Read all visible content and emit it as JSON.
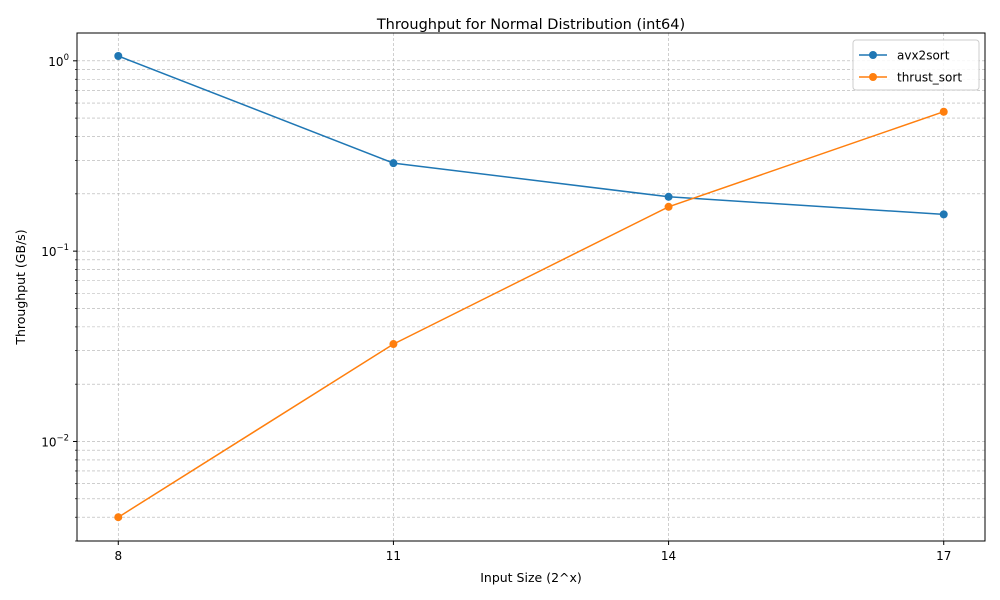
{
  "chart_data": {
    "type": "line",
    "title": "Throughput for Normal Distribution (int64)",
    "xlabel": "Input Size (2^x)",
    "ylabel": "Throughput (GB/s)",
    "x": [
      8,
      11,
      14,
      17
    ],
    "x_ticks": [
      "8",
      "11",
      "14",
      "17"
    ],
    "xlim": [
      7.55,
      17.45
    ],
    "yscale": "log",
    "ylim": [
      0.003,
      1.4
    ],
    "y_major_ticks": [
      {
        "value": 0.01,
        "base": "10",
        "exp": "−2"
      },
      {
        "value": 0.1,
        "base": "10",
        "exp": "−1"
      },
      {
        "value": 1,
        "base": "10",
        "exp": "0"
      }
    ],
    "grid": true,
    "legend_position": "top-right",
    "series": [
      {
        "name": "avx2sort",
        "color": "#1f77b4",
        "values": [
          1.06,
          0.29,
          0.193,
          0.156
        ]
      },
      {
        "name": "thrust_sort",
        "color": "#ff7f0e",
        "values": [
          0.004,
          0.0325,
          0.171,
          0.54
        ]
      }
    ]
  }
}
